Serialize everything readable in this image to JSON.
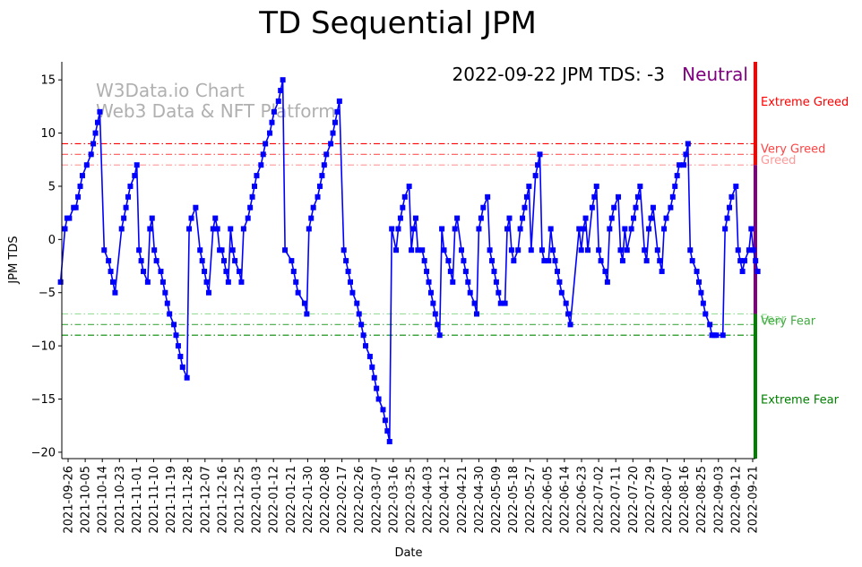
{
  "chart_data": {
    "type": "line",
    "title": "TD Sequential JPM",
    "xlabel": "Date",
    "ylabel": "JPM TDS",
    "ylim": [
      -20.6,
      16.7
    ],
    "yticks": [
      15,
      10,
      5,
      0,
      -5,
      -10,
      -15,
      -20
    ],
    "xtick_labels": [
      "2021-09-26",
      "2021-10-05",
      "2021-10-14",
      "2021-10-23",
      "2021-11-01",
      "2021-11-10",
      "2021-11-19",
      "2021-11-28",
      "2021-12-07",
      "2021-12-16",
      "2021-12-25",
      "2022-01-03",
      "2022-01-12",
      "2022-01-21",
      "2022-01-30",
      "2022-02-08",
      "2022-02-17",
      "2022-02-26",
      "2022-03-07",
      "2022-03-16",
      "2022-03-25",
      "2022-04-03",
      "2022-04-12",
      "2022-04-21",
      "2022-04-30",
      "2022-05-09",
      "2022-05-18",
      "2022-05-27",
      "2022-06-05",
      "2022-06-14",
      "2022-06-23",
      "2022-07-02",
      "2022-07-11",
      "2022-07-20",
      "2022-07-29",
      "2022-08-07",
      "2022-08-16",
      "2022-08-25",
      "2022-09-03",
      "2022-09-12",
      "2022-09-21"
    ],
    "annotation": "2022-09-22 JPM TDS: -3",
    "status": {
      "text": "Neutral",
      "color": "#800080"
    },
    "watermark": [
      "W3Data.io Chart",
      "Web3 Data & NFT Platform"
    ],
    "line_color": "#0000ff",
    "series": [
      {
        "name": "JPM TDS",
        "points": [
          [
            -1,
            -4
          ],
          [
            0,
            1
          ],
          [
            0.5,
            2
          ],
          [
            1,
            2
          ],
          [
            2,
            3
          ],
          [
            2.5,
            3
          ],
          [
            3,
            4
          ],
          [
            3.5,
            5
          ],
          [
            4,
            6
          ],
          [
            5,
            7
          ],
          [
            6,
            8
          ],
          [
            6.5,
            9
          ],
          [
            7,
            10
          ],
          [
            7.5,
            11
          ],
          [
            8,
            12
          ],
          [
            9,
            -1
          ],
          [
            10,
            -2
          ],
          [
            10.5,
            -3
          ],
          [
            11,
            -4
          ],
          [
            11.5,
            -5
          ],
          [
            13,
            1
          ],
          [
            13.5,
            2
          ],
          [
            14,
            3
          ],
          [
            14.5,
            4
          ],
          [
            15,
            5
          ],
          [
            16,
            6
          ],
          [
            16.5,
            7
          ],
          [
            17,
            -1
          ],
          [
            17.5,
            -2
          ],
          [
            18,
            -3
          ],
          [
            19,
            -4
          ],
          [
            19.5,
            1
          ],
          [
            20,
            2
          ],
          [
            20.5,
            -1
          ],
          [
            21,
            -2
          ],
          [
            22,
            -3
          ],
          [
            22.5,
            -4
          ],
          [
            23,
            -5
          ],
          [
            23.5,
            -6
          ],
          [
            24,
            -7
          ],
          [
            25,
            -8
          ],
          [
            25.5,
            -9
          ],
          [
            26,
            -10
          ],
          [
            26.5,
            -11
          ],
          [
            27,
            -12
          ],
          [
            28,
            -13
          ],
          [
            28.5,
            1
          ],
          [
            29,
            2
          ],
          [
            30,
            3
          ],
          [
            31,
            -1
          ],
          [
            31.5,
            -2
          ],
          [
            32,
            -3
          ],
          [
            32.5,
            -4
          ],
          [
            33,
            -5
          ],
          [
            34,
            1
          ],
          [
            34.5,
            2
          ],
          [
            35,
            1
          ],
          [
            35.5,
            -1
          ],
          [
            36,
            -1
          ],
          [
            36.5,
            -2
          ],
          [
            37,
            -3
          ],
          [
            37.5,
            -4
          ],
          [
            38,
            1
          ],
          [
            38.5,
            -1
          ],
          [
            39,
            -2
          ],
          [
            40,
            -3
          ],
          [
            40.5,
            -4
          ],
          [
            41,
            1
          ],
          [
            42,
            2
          ],
          [
            42.5,
            3
          ],
          [
            43,
            4
          ],
          [
            43.5,
            5
          ],
          [
            44,
            6
          ],
          [
            45,
            7
          ],
          [
            45.5,
            8
          ],
          [
            46,
            9
          ],
          [
            47,
            10
          ],
          [
            47.5,
            11
          ],
          [
            48,
            12
          ],
          [
            49,
            13
          ],
          [
            49.5,
            14
          ],
          [
            50,
            15
          ],
          [
            50.5,
            -1
          ],
          [
            52,
            -2
          ],
          [
            52.5,
            -3
          ],
          [
            53,
            -4
          ],
          [
            53.5,
            -5
          ],
          [
            55,
            -6
          ],
          [
            55.5,
            -7
          ],
          [
            56,
            1
          ],
          [
            56.5,
            2
          ],
          [
            57,
            3
          ],
          [
            58,
            4
          ],
          [
            58.5,
            5
          ],
          [
            59,
            6
          ],
          [
            59.5,
            7
          ],
          [
            60,
            8
          ],
          [
            61,
            9
          ],
          [
            61.5,
            10
          ],
          [
            62,
            11
          ],
          [
            62.5,
            12
          ],
          [
            63,
            13
          ],
          [
            64,
            -1
          ],
          [
            64.5,
            -2
          ],
          [
            65,
            -3
          ],
          [
            65.5,
            -4
          ],
          [
            66,
            -5
          ],
          [
            67,
            -6
          ],
          [
            67.5,
            -7
          ],
          [
            68,
            -8
          ],
          [
            68.5,
            -9
          ],
          [
            69,
            -10
          ],
          [
            70,
            -11
          ],
          [
            70.5,
            -12
          ],
          [
            71,
            -13
          ],
          [
            71.5,
            -14
          ],
          [
            72,
            -15
          ],
          [
            73,
            -16
          ],
          [
            73.5,
            -17
          ],
          [
            74,
            -18
          ],
          [
            74.5,
            -19
          ],
          [
            75,
            1
          ],
          [
            76,
            -1
          ],
          [
            76.5,
            1
          ],
          [
            77,
            2
          ],
          [
            77.5,
            3
          ],
          [
            78,
            4
          ],
          [
            79,
            5
          ],
          [
            79.5,
            -1
          ],
          [
            80,
            1
          ],
          [
            80.5,
            2
          ],
          [
            81,
            -1
          ],
          [
            82,
            -1
          ],
          [
            82.5,
            -2
          ],
          [
            83,
            -3
          ],
          [
            83.5,
            -4
          ],
          [
            84,
            -5
          ],
          [
            84.5,
            -6
          ],
          [
            85,
            -7
          ],
          [
            85.5,
            -8
          ],
          [
            86,
            -9
          ],
          [
            86.5,
            1
          ],
          [
            87,
            -1
          ],
          [
            88,
            -2
          ],
          [
            88.5,
            -3
          ],
          [
            89,
            -4
          ],
          [
            89.5,
            1
          ],
          [
            90,
            2
          ],
          [
            91,
            -1
          ],
          [
            91.5,
            -2
          ],
          [
            92,
            -3
          ],
          [
            92.5,
            -4
          ],
          [
            93,
            -5
          ],
          [
            94,
            -6
          ],
          [
            94.5,
            -7
          ],
          [
            95,
            1
          ],
          [
            95.5,
            2
          ],
          [
            96,
            3
          ],
          [
            97,
            4
          ],
          [
            97.5,
            -1
          ],
          [
            98,
            -2
          ],
          [
            98.5,
            -3
          ],
          [
            99,
            -4
          ],
          [
            99.5,
            -5
          ],
          [
            100,
            -6
          ],
          [
            101,
            -6
          ],
          [
            101.5,
            1
          ],
          [
            102,
            2
          ],
          [
            102.5,
            -1
          ],
          [
            103,
            -2
          ],
          [
            104,
            -1
          ],
          [
            104.5,
            1
          ],
          [
            105,
            2
          ],
          [
            105.5,
            3
          ],
          [
            106,
            4
          ],
          [
            106.5,
            5
          ],
          [
            107,
            -1
          ],
          [
            108,
            6
          ],
          [
            108.5,
            7
          ],
          [
            109,
            8
          ],
          [
            109.5,
            -1
          ],
          [
            110,
            -2
          ],
          [
            111,
            -2
          ],
          [
            111.5,
            1
          ],
          [
            112,
            -1
          ],
          [
            112.5,
            -2
          ],
          [
            113,
            -3
          ],
          [
            113.5,
            -4
          ],
          [
            114,
            -5
          ],
          [
            115,
            -6
          ],
          [
            115.5,
            -7
          ],
          [
            116,
            -8
          ],
          [
            118,
            1
          ],
          [
            118.5,
            -1
          ],
          [
            119,
            1
          ],
          [
            119.5,
            2
          ],
          [
            120,
            -1
          ],
          [
            121,
            3
          ],
          [
            121.5,
            4
          ],
          [
            122,
            5
          ],
          [
            122.5,
            -1
          ],
          [
            123,
            -2
          ],
          [
            124,
            -3
          ],
          [
            124.5,
            -4
          ],
          [
            125,
            1
          ],
          [
            125.5,
            2
          ],
          [
            126,
            3
          ],
          [
            127,
            4
          ],
          [
            127.5,
            -1
          ],
          [
            128,
            -2
          ],
          [
            128.5,
            1
          ],
          [
            129,
            -1
          ],
          [
            130,
            1
          ],
          [
            130.5,
            2
          ],
          [
            131,
            3
          ],
          [
            131.5,
            4
          ],
          [
            132,
            5
          ],
          [
            133,
            -1
          ],
          [
            133.5,
            -2
          ],
          [
            134,
            1
          ],
          [
            134.5,
            2
          ],
          [
            135,
            3
          ],
          [
            136,
            -1
          ],
          [
            136.5,
            -2
          ],
          [
            137,
            -3
          ],
          [
            137.5,
            1
          ],
          [
            138,
            2
          ],
          [
            139,
            3
          ],
          [
            139.5,
            4
          ],
          [
            140,
            5
          ],
          [
            140.5,
            6
          ],
          [
            141,
            7
          ],
          [
            142,
            7
          ],
          [
            142.5,
            8
          ],
          [
            143,
            9
          ],
          [
            143.5,
            -1
          ],
          [
            144,
            -2
          ],
          [
            145,
            -3
          ],
          [
            145.5,
            -4
          ],
          [
            146,
            -5
          ],
          [
            146.5,
            -6
          ],
          [
            147,
            -7
          ],
          [
            148,
            -8
          ],
          [
            148.5,
            -9
          ],
          [
            149,
            -9
          ],
          [
            149.5,
            -9
          ],
          [
            151,
            -9
          ],
          [
            151.5,
            1
          ],
          [
            152,
            2
          ],
          [
            152.5,
            3
          ],
          [
            153,
            4
          ],
          [
            154,
            5
          ],
          [
            154.5,
            -1
          ],
          [
            155,
            -2
          ],
          [
            155.5,
            -3
          ],
          [
            156,
            -2
          ],
          [
            157,
            -1
          ],
          [
            157.5,
            1
          ],
          [
            158,
            -1
          ],
          [
            158.5,
            -2
          ],
          [
            159,
            -3
          ]
        ]
      }
    ],
    "thresholds": [
      {
        "value": 9,
        "label": "Very Greed",
        "color": "#ff0000",
        "text_color": "#ff4444"
      },
      {
        "value": 8,
        "label": "",
        "color": "#ff5555",
        "text_color": "#ff5555"
      },
      {
        "value": 7,
        "label": "Greed",
        "color": "#ff9999",
        "text_color": "#ff9999"
      },
      {
        "value": -7,
        "label": "Fear",
        "color": "#99dd99",
        "text_color": "#99dd99"
      },
      {
        "value": -8,
        "label": "Very Fear",
        "color": "#44aa44",
        "text_color": "#44aa44"
      },
      {
        "value": -9,
        "label": "",
        "color": "#008800",
        "text_color": "#008800"
      }
    ],
    "zones": [
      {
        "label": "Extreme Greed",
        "from": 7,
        "to": 16.7,
        "color": "#ff0000",
        "label_at": 13
      },
      {
        "label": "",
        "from": -7,
        "to": 7,
        "color": "#800080",
        "label_at": 0
      },
      {
        "label": "Extreme Fear",
        "from": -20.6,
        "to": -7,
        "color": "#008000",
        "label_at": -15
      }
    ]
  }
}
